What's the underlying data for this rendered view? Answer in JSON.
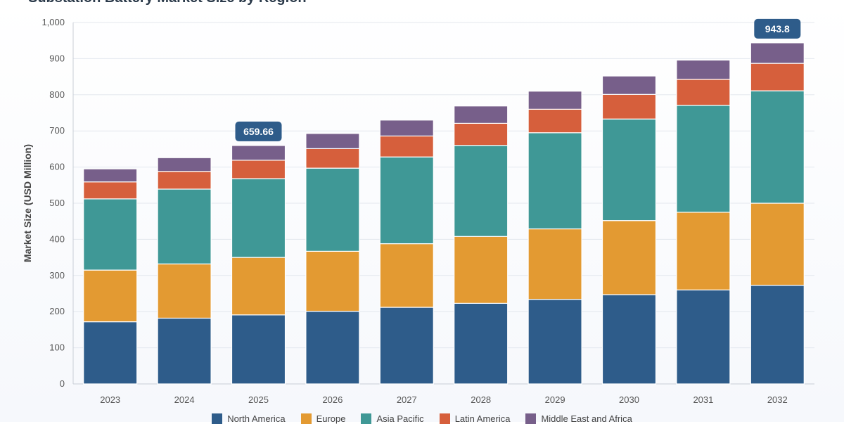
{
  "chart_data": {
    "type": "bar",
    "stacked": true,
    "title": "Substation Battery Market Size by Region",
    "ylabel": "Market Size (USD Million)",
    "xlabel": "",
    "ylim": [
      0,
      1000
    ],
    "yticks": [
      "0",
      "100",
      "200",
      "300",
      "400",
      "500",
      "600",
      "700",
      "800",
      "900",
      "1,000"
    ],
    "grid": true,
    "legend_position": "bottom",
    "categories": [
      "2023",
      "2024",
      "2025",
      "2026",
      "2027",
      "2028",
      "2029",
      "2030",
      "2031",
      "2032"
    ],
    "series": [
      {
        "name": "North America",
        "color": "#2e5c8a",
        "values": [
          172,
          182,
          191,
          201,
          212,
          223,
          234,
          247,
          260,
          273
        ]
      },
      {
        "name": "Europe",
        "color": "#e39a32",
        "values": [
          143,
          150,
          159,
          166,
          176,
          185,
          195,
          205,
          215,
          227
        ]
      },
      {
        "name": "Asia Pacific",
        "color": "#3f9896",
        "values": [
          197,
          207,
          218,
          230,
          240,
          252,
          266,
          281,
          296,
          311
        ]
      },
      {
        "name": "Latin America",
        "color": "#d65f3c",
        "values": [
          47,
          49,
          51,
          54,
          58,
          61,
          65,
          68,
          72,
          76
        ]
      },
      {
        "name": "Middle East and Africa",
        "color": "#775f8a",
        "values": [
          36,
          38,
          40.66,
          42,
          44,
          48,
          50,
          51,
          53,
          56.8
        ]
      }
    ],
    "annotations": [
      {
        "category": "2025",
        "text": "659.66"
      },
      {
        "category": "2032",
        "text": "943.8"
      }
    ]
  }
}
